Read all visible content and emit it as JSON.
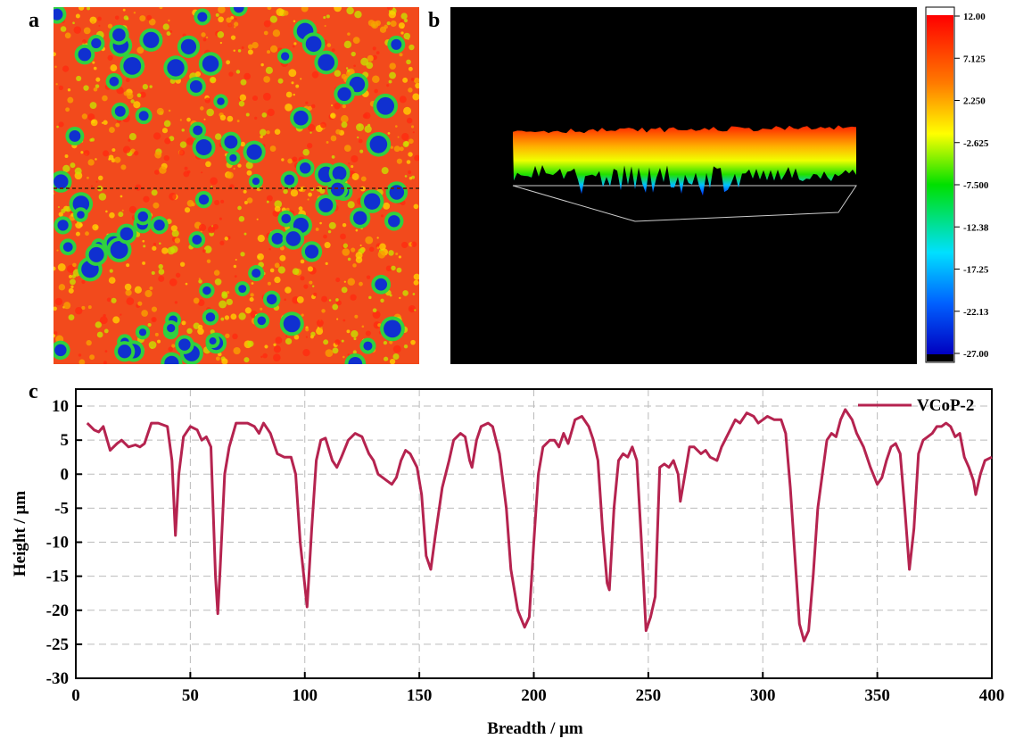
{
  "panel_labels": [
    "a",
    "b",
    "c"
  ],
  "colorbar": {
    "lim": [
      -27,
      12
    ],
    "ticks": [
      {
        "value": 12,
        "label": "12.00"
      },
      7.125,
      {
        "value": 2.25,
        "label": "2.250"
      },
      -2.625,
      {
        "value": -7.5,
        "label": "-7.500"
      },
      {
        "value": -12.375,
        "label": "-12.38"
      },
      -17.25,
      {
        "value": -22.125,
        "label": "-22.13"
      },
      {
        "value": -27,
        "label": "-27.00"
      }
    ]
  },
  "chart_data": {
    "type": "line",
    "xlabel": "Breadth / μm",
    "ylabel": "Height / μm",
    "xlim": [
      0,
      400
    ],
    "ylim": [
      -30,
      12.5
    ],
    "xticks": [
      0,
      50,
      100,
      150,
      200,
      250,
      300,
      350,
      400
    ],
    "yticks": [
      10,
      5,
      0,
      -5,
      -10,
      -15,
      -20,
      -25,
      -30
    ],
    "grid": true,
    "legend": "upper right",
    "x": [
      5,
      8,
      10,
      12,
      15,
      18,
      20,
      23,
      26,
      28,
      30,
      33,
      36,
      40,
      42,
      43.5,
      45,
      47,
      50,
      53,
      55,
      57,
      59,
      61,
      62,
      63,
      65,
      67,
      70,
      73,
      75,
      78,
      80,
      82,
      85,
      88,
      91,
      94,
      96,
      98,
      101,
      103,
      105,
      107,
      109,
      112,
      114,
      116,
      119,
      122,
      125,
      128,
      130,
      132,
      134,
      136,
      138,
      140,
      142,
      144,
      146,
      149,
      151,
      153,
      155,
      157,
      160,
      163,
      165,
      168,
      170,
      172,
      173,
      175,
      177,
      180,
      182,
      185,
      188,
      190,
      193,
      196,
      198,
      200,
      202,
      204,
      207,
      209,
      211,
      213,
      215,
      218,
      221,
      224,
      226,
      228,
      230,
      232,
      233,
      235,
      237,
      239,
      241,
      243,
      245,
      247,
      249,
      251,
      253,
      255,
      257,
      259,
      261,
      263,
      264,
      266,
      268,
      270,
      273,
      275,
      277,
      280,
      282,
      285,
      288,
      290,
      293,
      296,
      298,
      300,
      302,
      305,
      308,
      310,
      312,
      314,
      316,
      318,
      320,
      322,
      324,
      326,
      328,
      330,
      332,
      334,
      336,
      339,
      341,
      344,
      347,
      350,
      352,
      354,
      356,
      358,
      360,
      362,
      364,
      366,
      368,
      370,
      372,
      374,
      376,
      378,
      380,
      382,
      384,
      386,
      388,
      390,
      392,
      393,
      395,
      397,
      400
    ],
    "series": [
      {
        "name": "VCoP-2",
        "color": "#b5234f",
        "values": [
          7.5,
          6.5,
          6.2,
          7,
          3.5,
          4.5,
          5,
          4,
          4.3,
          4,
          4.5,
          7.5,
          7.5,
          7,
          2,
          -9,
          0,
          5.5,
          7,
          6.5,
          5,
          5.5,
          4,
          -15,
          -20.5,
          -14,
          0,
          4,
          7.5,
          7.5,
          7.5,
          7,
          6,
          7.5,
          6,
          3,
          2.5,
          2.5,
          0,
          -10,
          -19.5,
          -8,
          2,
          5,
          5.3,
          2,
          1,
          2.5,
          5,
          6,
          5.5,
          3,
          2,
          0,
          -0.5,
          -1,
          -1.5,
          -0.5,
          2,
          3.5,
          3,
          1,
          -3,
          -12,
          -14,
          -9,
          -2,
          2,
          5,
          6,
          5.5,
          2,
          1,
          5,
          7,
          7.5,
          7,
          3,
          -5,
          -14,
          -20,
          -22.5,
          -21,
          -10,
          0,
          4,
          5,
          5,
          4,
          6,
          4.5,
          8,
          8.5,
          7,
          5,
          2,
          -8,
          -16,
          -17,
          -5,
          2,
          3,
          2.5,
          4,
          2,
          -10,
          -23,
          -21,
          -18,
          1,
          1.5,
          1,
          2,
          0,
          -4,
          0,
          4,
          4,
          3,
          3.5,
          2.5,
          2,
          4,
          6,
          8,
          7.5,
          9,
          8.5,
          7.5,
          8,
          8.5,
          8,
          8,
          6,
          -2,
          -12,
          -22,
          -24.5,
          -23,
          -15,
          -5,
          0,
          5,
          6,
          5.5,
          8,
          9.5,
          8,
          6,
          4,
          1,
          -1.5,
          -0.5,
          2,
          4,
          4.5,
          3,
          -5,
          -14,
          -8,
          3,
          5,
          5.5,
          6,
          7,
          7,
          7.5,
          7,
          5.5,
          6,
          2.5,
          1,
          -1,
          -3,
          0,
          2,
          2.5
        ]
      }
    ]
  }
}
